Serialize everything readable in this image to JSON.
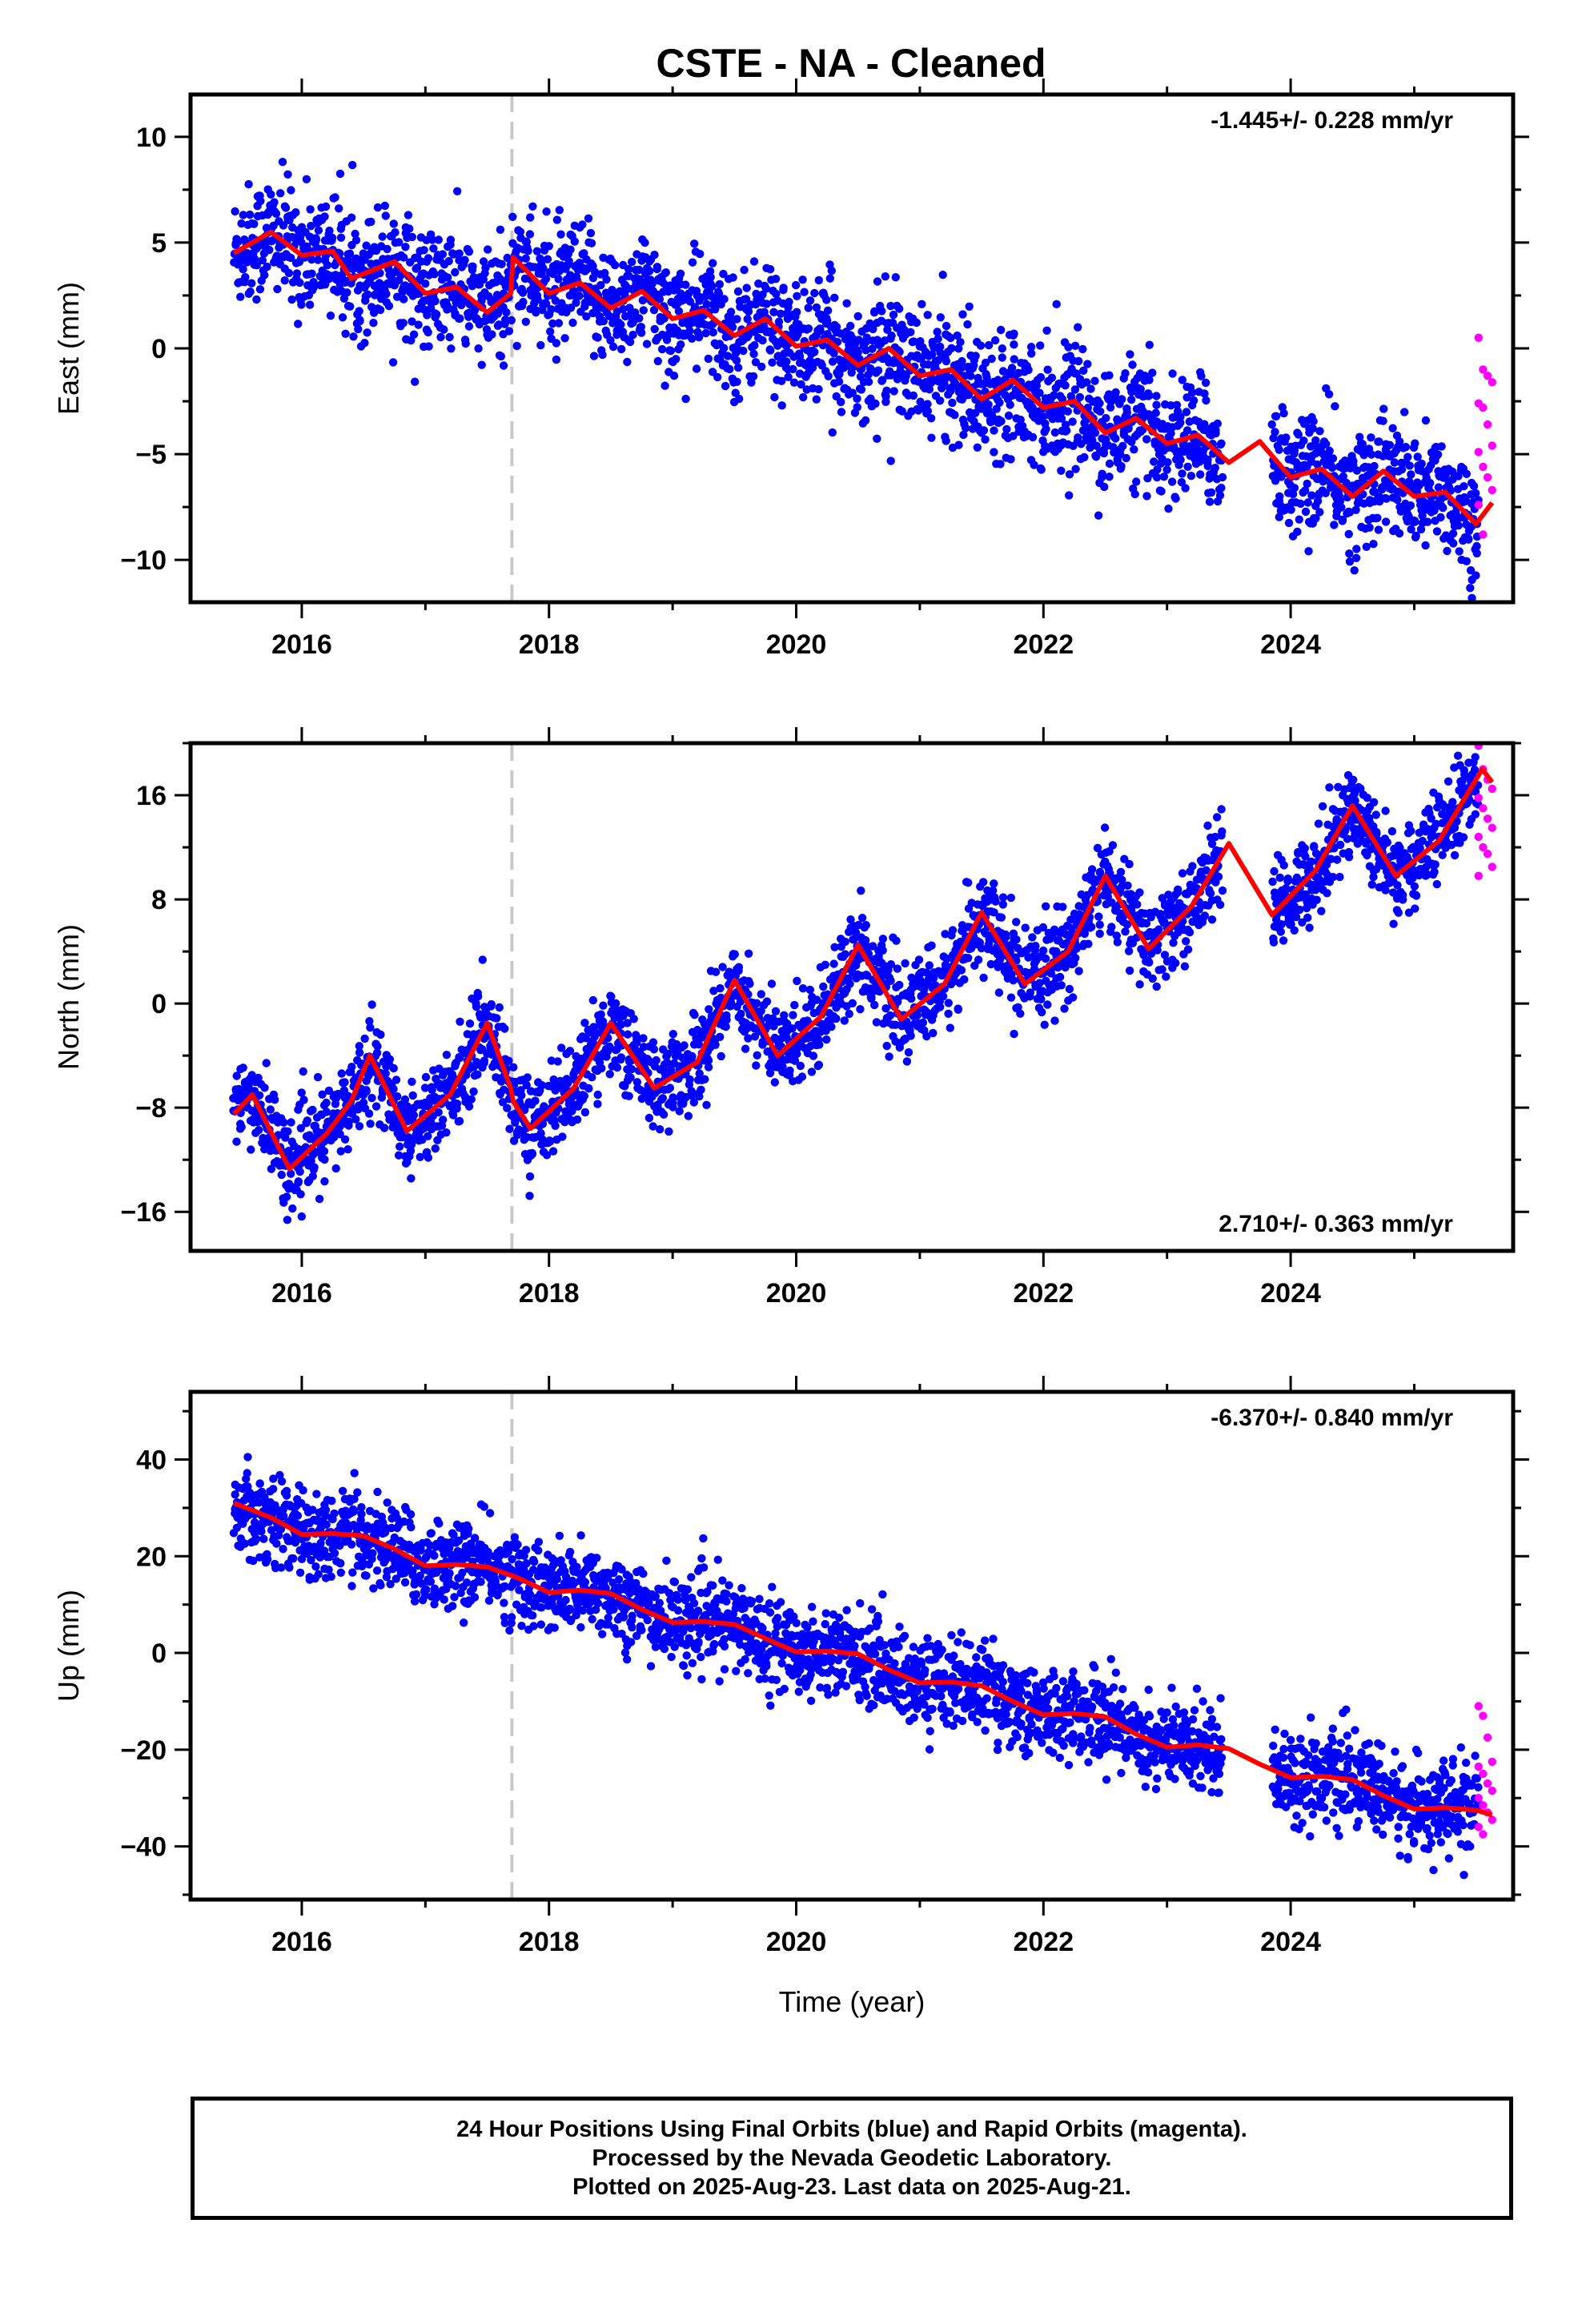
{
  "title": "CSTE  - NA - Cleaned",
  "colors": {
    "final": "#0000ff",
    "rapid": "#ff00ff",
    "model": "#ff0000",
    "event_line": "#c8c8c8"
  },
  "info": [
    "24 Hour Positions Using Final Orbits (blue) and Rapid Orbits (magenta).",
    "Processed by the Nevada Geodetic Laboratory.",
    "Plotted on 2025-Aug-23. Last data on 2025-Aug-21."
  ],
  "chart_data": [
    {
      "type": "scatter",
      "panel": "east",
      "ylabel": "East (mm)",
      "rate": "-1.445+/- 0.228 mm/yr",
      "rate_position": "top-right",
      "xlim": [
        2015.1,
        2025.8
      ],
      "ylim": [
        -12,
        12
      ],
      "yticks": [
        10,
        5,
        0,
        -5,
        -10
      ],
      "xticks": [
        2016,
        2018,
        2020,
        2022,
        2024
      ],
      "event_line_x": 2017.7,
      "data_span": [
        2015.45,
        2025.63
      ],
      "rapid_span": [
        2025.52,
        2025.63
      ],
      "gap": [
        2023.45,
        2023.85
      ],
      "noise_sd": 1.4,
      "model_curve": [
        [
          2015.45,
          4.5
        ],
        [
          2015.75,
          5.5
        ],
        [
          2016.0,
          4.4
        ],
        [
          2016.25,
          4.6
        ],
        [
          2016.4,
          3.3
        ],
        [
          2016.75,
          4.1
        ],
        [
          2017.0,
          2.6
        ],
        [
          2017.25,
          2.9
        ],
        [
          2017.5,
          1.7
        ],
        [
          2017.69,
          2.6
        ],
        [
          2017.71,
          4.3
        ],
        [
          2018.0,
          2.6
        ],
        [
          2018.25,
          3.1
        ],
        [
          2018.5,
          1.9
        ],
        [
          2018.75,
          2.7
        ],
        [
          2019.0,
          1.4
        ],
        [
          2019.25,
          1.8
        ],
        [
          2019.5,
          0.6
        ],
        [
          2019.75,
          1.4
        ],
        [
          2020.0,
          0.1
        ],
        [
          2020.25,
          0.4
        ],
        [
          2020.5,
          -0.8
        ],
        [
          2020.75,
          0.0
        ],
        [
          2021.0,
          -1.3
        ],
        [
          2021.25,
          -1.0
        ],
        [
          2021.5,
          -2.4
        ],
        [
          2021.75,
          -1.5
        ],
        [
          2022.0,
          -2.8
        ],
        [
          2022.25,
          -2.5
        ],
        [
          2022.5,
          -4.0
        ],
        [
          2022.75,
          -3.3
        ],
        [
          2023.0,
          -4.5
        ],
        [
          2023.25,
          -4.1
        ],
        [
          2023.5,
          -5.4
        ],
        [
          2023.75,
          -4.4
        ],
        [
          2024.0,
          -6.1
        ],
        [
          2024.25,
          -5.7
        ],
        [
          2024.5,
          -7.0
        ],
        [
          2024.75,
          -5.8
        ],
        [
          2025.0,
          -7.0
        ],
        [
          2025.25,
          -6.8
        ],
        [
          2025.5,
          -8.3
        ],
        [
          2025.63,
          -7.3
        ]
      ],
      "rapid_values": [
        0.5,
        -1.0,
        -1.3,
        -1.6,
        -2.6,
        -2.8,
        -3.6,
        -4.6,
        -4.9,
        -5.6,
        -6.1,
        -6.7,
        -7.4,
        -8.8
      ]
    },
    {
      "type": "scatter",
      "panel": "north",
      "ylabel": "North (mm)",
      "rate": "2.710+/- 0.363 mm/yr",
      "rate_position": "bottom-right",
      "xlim": [
        2015.1,
        2025.8
      ],
      "ylim": [
        -19,
        20
      ],
      "yticks": [
        16,
        8,
        0,
        -8,
        -16
      ],
      "xticks": [
        2016,
        2018,
        2020,
        2022,
        2024
      ],
      "event_line_x": 2017.7,
      "data_span": [
        2015.45,
        2025.63
      ],
      "rapid_span": [
        2025.52,
        2025.63
      ],
      "gap": [
        2023.45,
        2023.85
      ],
      "noise_sd": 1.7,
      "model_curve": [
        [
          2015.45,
          -8.5
        ],
        [
          2015.6,
          -7.0
        ],
        [
          2015.9,
          -12.7
        ],
        [
          2016.2,
          -10.0
        ],
        [
          2016.4,
          -7.5
        ],
        [
          2016.55,
          -4.0
        ],
        [
          2016.85,
          -9.8
        ],
        [
          2017.2,
          -7.0
        ],
        [
          2017.5,
          -1.5
        ],
        [
          2017.69,
          -6.5
        ],
        [
          2017.71,
          -7.5
        ],
        [
          2017.85,
          -9.6
        ],
        [
          2018.2,
          -6.5
        ],
        [
          2018.5,
          -1.5
        ],
        [
          2018.85,
          -6.5
        ],
        [
          2019.2,
          -4.5
        ],
        [
          2019.5,
          1.8
        ],
        [
          2019.85,
          -4.0
        ],
        [
          2020.2,
          -1.0
        ],
        [
          2020.5,
          4.5
        ],
        [
          2020.85,
          -1.2
        ],
        [
          2021.2,
          1.5
        ],
        [
          2021.5,
          7.0
        ],
        [
          2021.85,
          1.5
        ],
        [
          2022.2,
          4.0
        ],
        [
          2022.5,
          9.8
        ],
        [
          2022.85,
          4.2
        ],
        [
          2023.2,
          7.5
        ],
        [
          2023.5,
          12.3
        ],
        [
          2023.85,
          6.8
        ],
        [
          2024.2,
          10.2
        ],
        [
          2024.5,
          15.2
        ],
        [
          2024.85,
          9.8
        ],
        [
          2025.2,
          12.5
        ],
        [
          2025.55,
          18.0
        ],
        [
          2025.63,
          17.0
        ]
      ],
      "rapid_values": [
        19.8,
        18.0,
        17.2,
        16.5,
        15.8,
        15.0,
        14.2,
        13.5,
        12.8,
        12.0,
        11.5,
        10.5,
        9.8
      ]
    },
    {
      "type": "scatter",
      "panel": "up",
      "ylabel": "Up (mm)",
      "xlabel": "Time (year)",
      "rate": "-6.370+/- 0.840 mm/yr",
      "rate_position": "top-right",
      "xlim": [
        2015.1,
        2025.8
      ],
      "ylim": [
        -51,
        54
      ],
      "yticks": [
        40,
        20,
        0,
        -20,
        -40
      ],
      "xticks": [
        2016,
        2018,
        2020,
        2022,
        2024
      ],
      "event_line_x": 2017.7,
      "data_span": [
        2015.45,
        2025.63
      ],
      "rapid_span": [
        2025.52,
        2025.63
      ],
      "gap": [
        2023.45,
        2023.85
      ],
      "noise_sd": 4.5,
      "model_curve": [
        [
          2015.45,
          31.0
        ],
        [
          2015.75,
          28.0
        ],
        [
          2016.0,
          24.5
        ],
        [
          2016.25,
          24.7
        ],
        [
          2016.5,
          24.2
        ],
        [
          2016.75,
          21.5
        ],
        [
          2017.0,
          18.0
        ],
        [
          2017.25,
          18.3
        ],
        [
          2017.5,
          17.8
        ],
        [
          2017.75,
          15.5
        ],
        [
          2018.0,
          12.5
        ],
        [
          2018.25,
          13.0
        ],
        [
          2018.5,
          12.3
        ],
        [
          2018.75,
          9.0
        ],
        [
          2019.0,
          6.3
        ],
        [
          2019.25,
          6.5
        ],
        [
          2019.5,
          5.9
        ],
        [
          2019.75,
          3.0
        ],
        [
          2020.0,
          0.2
        ],
        [
          2020.25,
          0.4
        ],
        [
          2020.5,
          -0.2
        ],
        [
          2020.75,
          -3.5
        ],
        [
          2021.0,
          -6.2
        ],
        [
          2021.25,
          -6.0
        ],
        [
          2021.5,
          -6.8
        ],
        [
          2021.75,
          -10.0
        ],
        [
          2022.0,
          -12.8
        ],
        [
          2022.25,
          -12.5
        ],
        [
          2022.5,
          -13.2
        ],
        [
          2022.75,
          -16.8
        ],
        [
          2023.0,
          -19.5
        ],
        [
          2023.25,
          -19.0
        ],
        [
          2023.5,
          -19.8
        ],
        [
          2023.75,
          -23.0
        ],
        [
          2024.0,
          -25.8
        ],
        [
          2024.25,
          -25.5
        ],
        [
          2024.5,
          -26.2
        ],
        [
          2024.75,
          -29.5
        ],
        [
          2025.0,
          -32.3
        ],
        [
          2025.25,
          -32.0
        ],
        [
          2025.5,
          -32.5
        ],
        [
          2025.63,
          -33.5
        ]
      ],
      "rapid_values": [
        -11.0,
        -13.0,
        -17.5,
        -22.5,
        -23.5,
        -25.0,
        -27.0,
        -28.5,
        -30.0,
        -31.5,
        -33.0,
        -34.5,
        -36.0,
        -37.5
      ]
    }
  ]
}
